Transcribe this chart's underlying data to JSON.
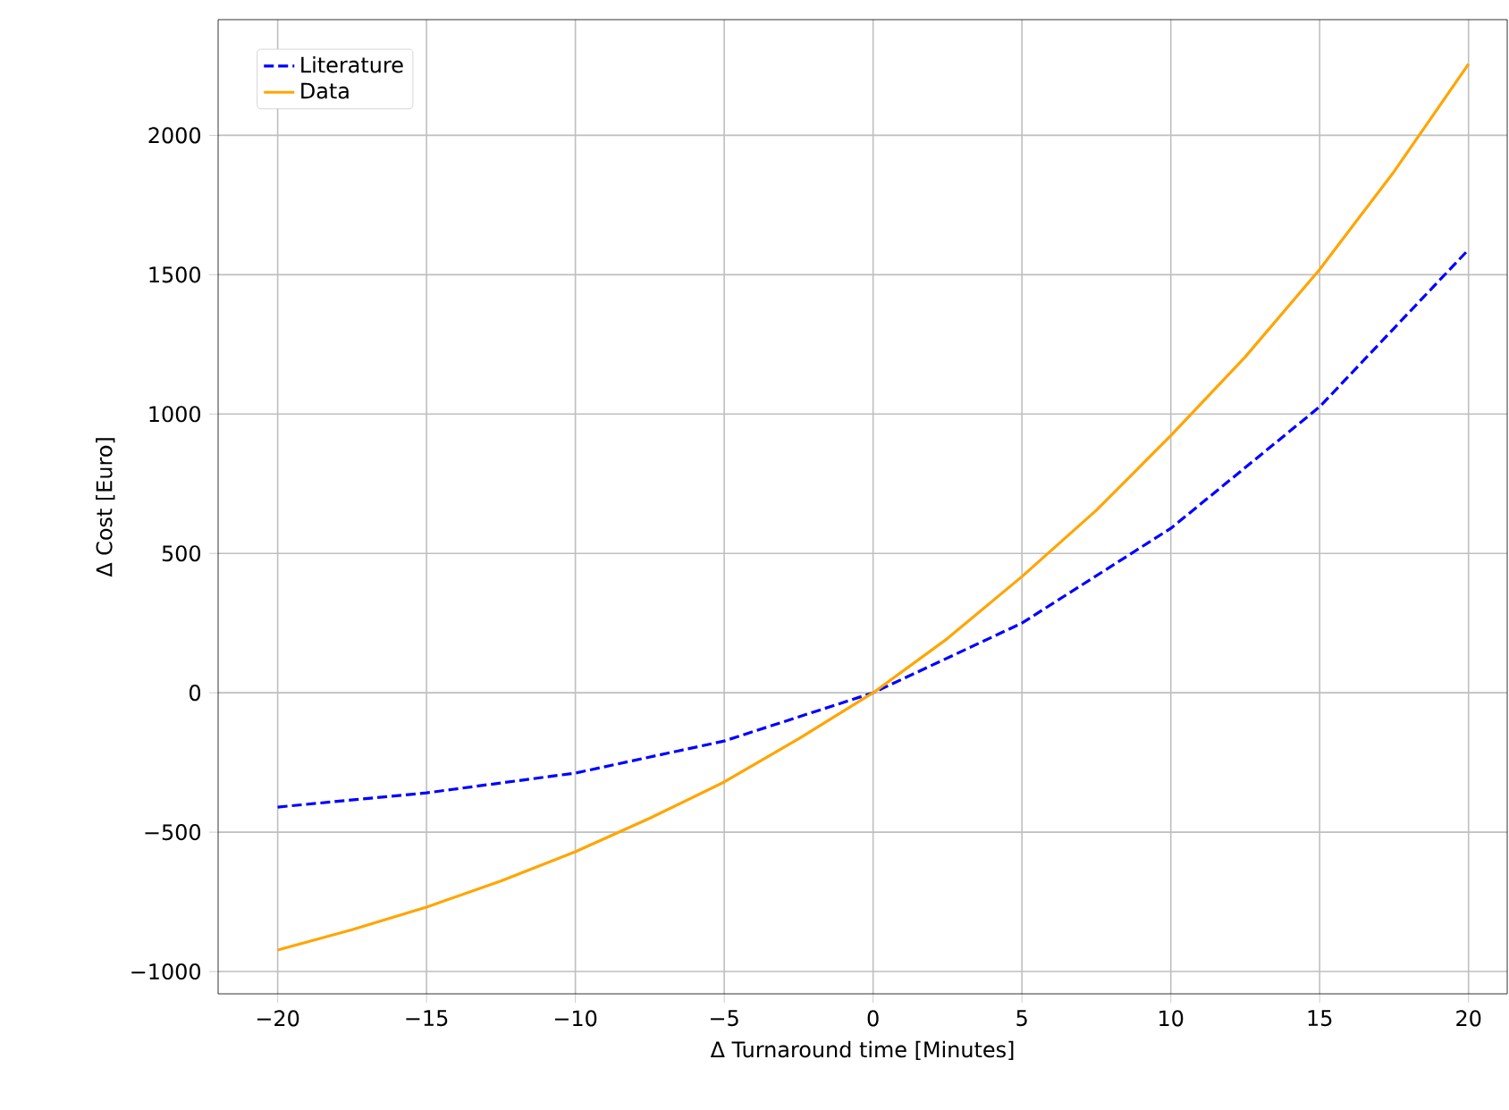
{
  "chart_data": {
    "type": "line",
    "xlabel": "Δ Turnaround time [Minutes]",
    "ylabel": "Δ Cost [Euro]",
    "xlim": [
      -22,
      21.3
    ],
    "ylim": [
      -1080,
      2415
    ],
    "xticks": [
      {
        "value": -20,
        "label": "−20"
      },
      {
        "value": -15,
        "label": "−15"
      },
      {
        "value": -10,
        "label": "−10"
      },
      {
        "value": -5,
        "label": "−5"
      },
      0,
      5,
      10,
      15,
      20
    ],
    "yticks": [
      {
        "value": -1000,
        "label": "−1000"
      },
      {
        "value": -500,
        "label": "−500"
      },
      0,
      500,
      1000,
      1500,
      2000
    ],
    "grid": true,
    "legend": "top left",
    "series": [
      {
        "name": "Literature",
        "color": "#0000ff",
        "line_style": "dashed",
        "x": [
          -20,
          -15,
          -10,
          -5,
          0,
          5,
          10,
          15,
          20
        ],
        "values": [
          -410,
          -359,
          -288,
          -173,
          0,
          250,
          590,
          1026,
          1590
        ]
      },
      {
        "name": "Data",
        "color": "#ffa500",
        "line_style": "solid",
        "x": [
          -20,
          -17.5,
          -15,
          -12.5,
          -10,
          -7.5,
          -5,
          -2.5,
          0,
          2.5,
          5,
          7.5,
          10,
          12.5,
          15,
          17.5,
          20
        ],
        "values": [
          -923,
          -850,
          -769,
          -675,
          -570,
          -450,
          -320,
          -165,
          0,
          195,
          417,
          655,
          923,
          1205,
          1519,
          1870,
          2256
        ]
      }
    ]
  }
}
